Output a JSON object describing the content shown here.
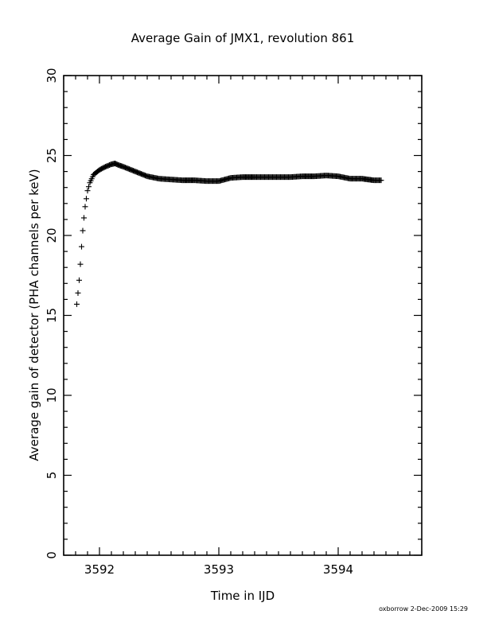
{
  "chart_data": {
    "type": "scatter",
    "marker": "plus",
    "title": "Average Gain of JMX1, revolution 861",
    "xlabel": "Time in IJD",
    "ylabel": "Average gain of detector (PHA channels per keV)",
    "xlim": [
      3591.7,
      3594.7
    ],
    "ylim": [
      0,
      30
    ],
    "x_ticks": [
      3592,
      3593,
      3594
    ],
    "x_tick_labels": [
      "3592",
      "3593",
      "3594"
    ],
    "y_ticks": [
      0,
      5,
      10,
      15,
      20,
      25,
      30
    ],
    "y_tick_labels": [
      "0",
      "5",
      "10",
      "15",
      "20",
      "25",
      "30"
    ],
    "grid": false,
    "legend": "none",
    "series": [
      {
        "x": [
          3591.81,
          3591.82,
          3591.83,
          3591.84,
          3591.85,
          3591.86,
          3591.87,
          3591.88,
          3591.89,
          3591.9,
          3591.92,
          3591.95,
          3592.0,
          3592.05,
          3592.1,
          3592.13,
          3592.16,
          3592.2,
          3592.25,
          3592.3,
          3592.4,
          3592.5,
          3592.6,
          3592.7,
          3592.8,
          3592.9,
          3593.0,
          3593.1,
          3593.2,
          3593.3,
          3593.4,
          3593.5,
          3593.6,
          3593.7,
          3593.8,
          3593.9,
          3594.0,
          3594.1,
          3594.2,
          3594.3,
          3594.36
        ],
        "y": [
          15.7,
          16.4,
          17.2,
          18.2,
          19.3,
          20.3,
          21.1,
          21.8,
          22.3,
          22.8,
          23.3,
          23.8,
          24.1,
          24.3,
          24.45,
          24.5,
          24.4,
          24.3,
          24.15,
          24.0,
          23.7,
          23.55,
          23.5,
          23.45,
          23.45,
          23.4,
          23.4,
          23.6,
          23.65,
          23.65,
          23.65,
          23.65,
          23.65,
          23.7,
          23.7,
          23.75,
          23.7,
          23.55,
          23.55,
          23.45,
          23.45
        ]
      }
    ],
    "footer": "oxborrow  2-Dec-2009 15:29"
  }
}
